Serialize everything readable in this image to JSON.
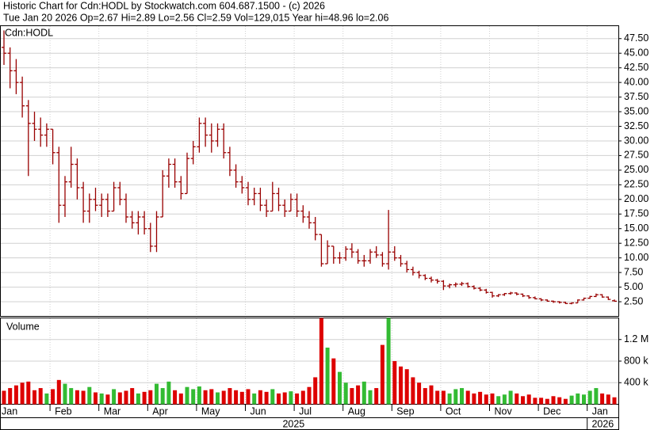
{
  "header": {
    "title": "Historic Chart for Cdn:HODL by Stockwatch.com 604.687.1500 - (c) 2026",
    "quote": "Tue Jan 20 2026  Op=2.67  Hi=2.89  Lo=2.56  Cl=2.59  Vol=129,015  Year hi=48.96  lo=2.06"
  },
  "chart_data": [
    {
      "type": "ohlc",
      "label": "Cdn:HODL",
      "color": "#990000",
      "grid": true,
      "categories": [
        "Jan",
        null,
        null,
        null,
        null,
        null,
        null,
        null,
        "Feb",
        null,
        null,
        null,
        null,
        null,
        null,
        null,
        "Mar",
        null,
        null,
        null,
        null,
        null,
        null,
        null,
        "Apr",
        null,
        null,
        null,
        null,
        null,
        null,
        null,
        "May",
        null,
        null,
        null,
        null,
        null,
        null,
        null,
        "Jun",
        null,
        null,
        null,
        null,
        null,
        null,
        null,
        "Jul",
        null,
        null,
        null,
        null,
        null,
        null,
        null,
        "Aug",
        null,
        null,
        null,
        null,
        null,
        null,
        null,
        "Sep",
        null,
        null,
        null,
        null,
        null,
        null,
        null,
        "Oct",
        null,
        null,
        null,
        null,
        null,
        null,
        null,
        "Nov",
        null,
        null,
        null,
        null,
        null,
        null,
        null,
        "Dec",
        null,
        null,
        null,
        null,
        null,
        null,
        null,
        "Jan",
        null,
        null,
        null,
        null
      ],
      "years": [
        "2025",
        "2026"
      ],
      "open": [
        46,
        45,
        42,
        40,
        36,
        33,
        32,
        31,
        32,
        28,
        19,
        23,
        26,
        22,
        18,
        20,
        19,
        20,
        18,
        22,
        20,
        17,
        16,
        17,
        15,
        12,
        17,
        24,
        26,
        23,
        21,
        27,
        29,
        33,
        31,
        30,
        32,
        28,
        25,
        23,
        22,
        20,
        21,
        19,
        18,
        21,
        19,
        18,
        20,
        18,
        17,
        16,
        14,
        9,
        12,
        10,
        10,
        11.5,
        11,
        9.5,
        9.5,
        11,
        10.5,
        9,
        11,
        10,
        9,
        8,
        7.5,
        7,
        6.5,
        6.2,
        6,
        5.2,
        5.4,
        5.5,
        5.6,
        5.1,
        4.8,
        4.5,
        4.1,
        3.5,
        3.7,
        3.9,
        4,
        3.8,
        3.5,
        3.2,
        3,
        2.8,
        2.6,
        2.5,
        2.4,
        2.2,
        2.3,
        2.8,
        3.1,
        3.4,
        3.7,
        3.3,
        2.67
      ],
      "high": [
        48.9,
        46,
        44,
        41,
        37,
        35,
        34,
        33,
        32,
        29,
        24,
        29,
        27,
        23,
        21,
        22,
        21,
        21,
        23,
        23,
        21,
        18,
        18,
        18,
        16,
        18,
        25,
        27,
        27,
        24,
        28,
        30,
        34,
        34,
        33,
        33,
        33,
        29,
        26,
        24,
        23,
        22,
        22,
        20,
        23,
        22,
        20,
        21,
        21,
        19,
        18,
        17,
        14,
        13,
        12,
        11,
        12,
        12.5,
        11.5,
        10.5,
        11.5,
        12,
        11,
        18.2,
        12,
        10.5,
        9.5,
        8.5,
        7.8,
        7.2,
        6.8,
        6.4,
        6.2,
        5.6,
        5.8,
        5.9,
        5.8,
        5.3,
        5,
        4.7,
        4.2,
        3.8,
        4,
        4.2,
        4.1,
        3.9,
        3.6,
        3.4,
        3.1,
        2.9,
        2.7,
        2.6,
        2.5,
        2.4,
        2.9,
        3.2,
        3.5,
        3.9,
        3.8,
        3.4,
        2.89
      ],
      "low": [
        43,
        39,
        38,
        34,
        24,
        30,
        29,
        29,
        26,
        16,
        17,
        22,
        20,
        16,
        16,
        18,
        17,
        17,
        18,
        19,
        16,
        15,
        14,
        14,
        11,
        11,
        17,
        22,
        22,
        20,
        21,
        26,
        28,
        29,
        28,
        29,
        27,
        24,
        22,
        21,
        19,
        19,
        18,
        17,
        18,
        18,
        17,
        18,
        17,
        16,
        15,
        13,
        8.5,
        9,
        9,
        9,
        9.5,
        10,
        9,
        8.5,
        9,
        10,
        8.5,
        8,
        9.5,
        8.5,
        7.5,
        7,
        6.5,
        6.2,
        5.8,
        5.6,
        4.5,
        4.8,
        5,
        5.2,
        4.9,
        4.6,
        4.3,
        3.9,
        3.2,
        3.3,
        3.5,
        3.7,
        3.6,
        3.3,
        3,
        2.9,
        2.6,
        2.5,
        2.3,
        2.2,
        2.1,
        2.06,
        2.3,
        2.7,
        3,
        3.3,
        3.2,
        2.8,
        2.56
      ],
      "close": [
        45,
        42,
        40,
        36,
        33,
        32,
        31,
        32,
        28,
        19,
        23,
        26,
        22,
        18,
        20,
        19,
        20,
        18,
        22,
        20,
        17,
        16,
        17,
        15,
        12,
        17,
        24,
        26,
        23,
        21,
        27,
        29,
        33,
        31,
        30,
        32,
        28,
        25,
        23,
        22,
        20,
        21,
        19,
        18,
        21,
        19,
        18,
        20,
        18,
        17,
        16,
        14,
        9,
        12,
        10,
        10,
        11.5,
        11,
        9.5,
        9.5,
        11,
        10.5,
        9,
        11,
        10,
        9,
        8,
        7.5,
        7,
        6.5,
        6.2,
        6,
        5.2,
        5.4,
        5.5,
        5.6,
        5.1,
        4.8,
        4.5,
        4.1,
        3.5,
        3.7,
        3.9,
        4,
        3.8,
        3.5,
        3.2,
        3,
        2.8,
        2.6,
        2.5,
        2.4,
        2.2,
        2.3,
        2.8,
        3.1,
        3.4,
        3.7,
        3.3,
        2.9,
        2.59
      ],
      "ylim": [
        0,
        49.7
      ],
      "yticks": [
        {
          "value": 2.5,
          "label": "2.50"
        },
        {
          "value": 5,
          "label": "5.00"
        },
        {
          "value": 7.5,
          "label": "7.50"
        },
        {
          "value": 10,
          "label": "10.00"
        },
        {
          "value": 12.5,
          "label": "12.50"
        },
        {
          "value": 15,
          "label": "15.00"
        },
        {
          "value": 17.5,
          "label": "17.50"
        },
        {
          "value": 20,
          "label": "20.00"
        },
        {
          "value": 22.5,
          "label": "22.50"
        },
        {
          "value": 25,
          "label": "25.00"
        },
        {
          "value": 27.5,
          "label": "27.50"
        },
        {
          "value": 30,
          "label": "30.00"
        },
        {
          "value": 32.5,
          "label": "32.50"
        },
        {
          "value": 35,
          "label": "35.00"
        },
        {
          "value": 37.5,
          "label": "37.50"
        },
        {
          "value": 40,
          "label": "40.00"
        },
        {
          "value": 42.5,
          "label": "42.50"
        },
        {
          "value": 45,
          "label": "45.00"
        },
        {
          "value": 47.5,
          "label": "47.50"
        }
      ]
    },
    {
      "type": "bar",
      "label": "Volume",
      "up_color": "#33bb33",
      "down_color": "#dd0000",
      "grid": true,
      "values": [
        250000,
        300000,
        350000,
        400000,
        420000,
        260000,
        300000,
        200000,
        280000,
        450000,
        380000,
        300000,
        260000,
        250000,
        320000,
        220000,
        200000,
        180000,
        280000,
        220000,
        250000,
        300000,
        200000,
        230000,
        260000,
        380000,
        300000,
        420000,
        260000,
        200000,
        320000,
        280000,
        330000,
        260000,
        280000,
        220000,
        250000,
        300000,
        260000,
        230000,
        280000,
        200000,
        260000,
        230000,
        280000,
        200000,
        220000,
        240000,
        200000,
        250000,
        320000,
        500000,
        1600000,
        1050000,
        850000,
        600000,
        400000,
        300000,
        350000,
        420000,
        260000,
        300000,
        1100000,
        1600000,
        800000,
        700000,
        650000,
        500000,
        400000,
        300000,
        350000,
        250000,
        250000,
        200000,
        280000,
        300000,
        250000,
        200000,
        230000,
        180000,
        200000,
        150000,
        180000,
        250000,
        200000,
        150000,
        180000,
        120000,
        120000,
        100000,
        150000,
        130000,
        100000,
        160000,
        200000,
        180000,
        250000,
        300000,
        200000,
        180000,
        129015
      ],
      "ylim": [
        0,
        1600000
      ],
      "yticks": [
        {
          "value": 400000,
          "label": "400 k"
        },
        {
          "value": 800000,
          "label": "800 k"
        },
        {
          "value": 1200000,
          "label": "1.2 M"
        }
      ]
    }
  ]
}
